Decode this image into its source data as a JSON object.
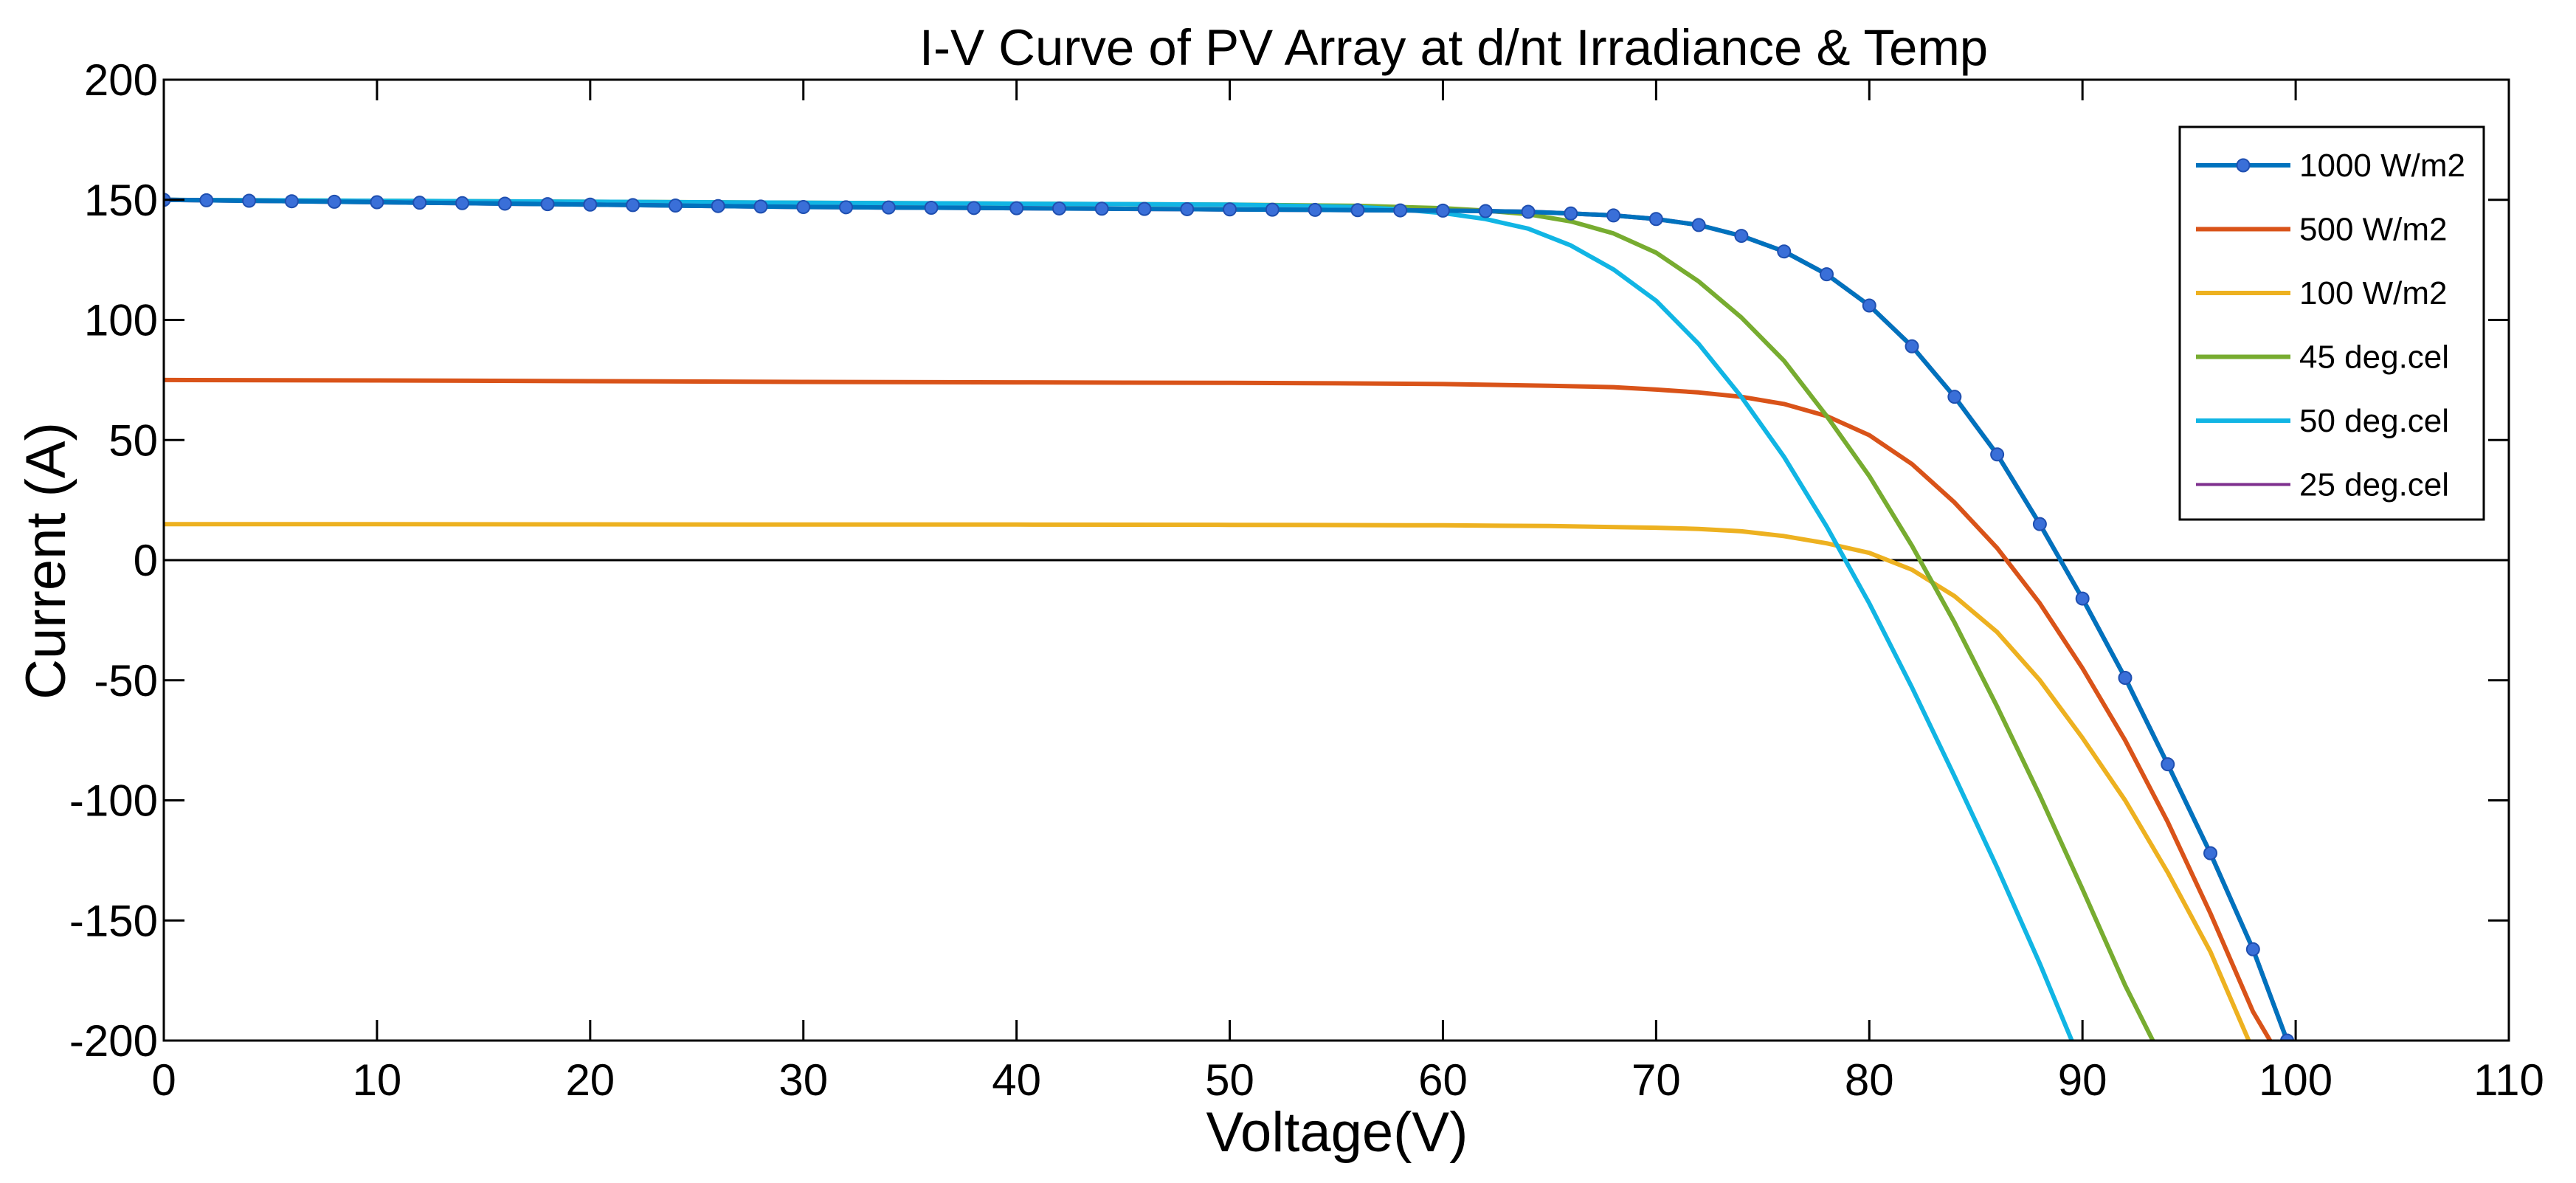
{
  "chart_data": {
    "type": "line",
    "title": "I-V Curve of PV Array at d/nt Irradiance & Temp",
    "xlabel": "Voltage(V)",
    "ylabel": "Current (A)",
    "xlim": [
      0,
      110
    ],
    "ylim": [
      -200,
      200
    ],
    "xticks": [
      0,
      10,
      20,
      30,
      40,
      50,
      60,
      70,
      80,
      90,
      100,
      110
    ],
    "yticks": [
      -200,
      -150,
      -100,
      -50,
      0,
      50,
      100,
      150,
      200
    ],
    "zero_line": true,
    "grid": false,
    "legend_position": "top-right",
    "series": [
      {
        "name": "1000 W/m2",
        "color": "#0072BD",
        "marker": "circle",
        "points": [
          [
            0,
            150
          ],
          [
            2,
            149.8
          ],
          [
            4,
            149.6
          ],
          [
            6,
            149.4
          ],
          [
            8,
            149.2
          ],
          [
            10,
            149
          ],
          [
            12,
            148.8
          ],
          [
            14,
            148.6
          ],
          [
            16,
            148.4
          ],
          [
            18,
            148.2
          ],
          [
            20,
            148
          ],
          [
            22,
            147.8
          ],
          [
            24,
            147.6
          ],
          [
            26,
            147.4
          ],
          [
            28,
            147.2
          ],
          [
            30,
            147
          ],
          [
            32,
            146.9
          ],
          [
            34,
            146.8
          ],
          [
            36,
            146.7
          ],
          [
            38,
            146.6
          ],
          [
            40,
            146.5
          ],
          [
            42,
            146.4
          ],
          [
            44,
            146.3
          ],
          [
            46,
            146.2
          ],
          [
            48,
            146.1
          ],
          [
            50,
            146
          ],
          [
            52,
            145.9
          ],
          [
            54,
            145.8
          ],
          [
            56,
            145.7
          ],
          [
            58,
            145.6
          ],
          [
            60,
            145.5
          ],
          [
            62,
            145.3
          ],
          [
            64,
            145
          ],
          [
            66,
            144.3
          ],
          [
            68,
            143.5
          ],
          [
            70,
            142
          ],
          [
            72,
            139.5
          ],
          [
            74,
            135
          ],
          [
            76,
            128.5
          ],
          [
            78,
            119
          ],
          [
            80,
            106
          ],
          [
            82,
            89
          ],
          [
            84,
            68
          ],
          [
            86,
            44
          ],
          [
            88,
            15
          ],
          [
            90,
            -16
          ],
          [
            92,
            -49
          ],
          [
            94,
            -85
          ],
          [
            96,
            -122
          ],
          [
            98,
            -162
          ],
          [
            99.6,
            -200
          ]
        ]
      },
      {
        "name": "500 W/m2",
        "color": "#D95319",
        "marker": "none",
        "points": [
          [
            0,
            75
          ],
          [
            10,
            74.8
          ],
          [
            20,
            74.5
          ],
          [
            30,
            74.2
          ],
          [
            40,
            74
          ],
          [
            50,
            73.8
          ],
          [
            55,
            73.6
          ],
          [
            60,
            73.3
          ],
          [
            65,
            72.6
          ],
          [
            68,
            72
          ],
          [
            70,
            71
          ],
          [
            72,
            69.8
          ],
          [
            74,
            68
          ],
          [
            76,
            65
          ],
          [
            78,
            60
          ],
          [
            80,
            52
          ],
          [
            82,
            40
          ],
          [
            84,
            24
          ],
          [
            86,
            5
          ],
          [
            88,
            -18
          ],
          [
            90,
            -45
          ],
          [
            92,
            -75
          ],
          [
            94,
            -109
          ],
          [
            96,
            -147
          ],
          [
            98,
            -188
          ],
          [
            98.8,
            -200
          ]
        ]
      },
      {
        "name": "100 W/m2",
        "color": "#EDB120",
        "marker": "none",
        "points": [
          [
            0,
            15
          ],
          [
            10,
            15
          ],
          [
            20,
            14.9
          ],
          [
            30,
            14.8
          ],
          [
            40,
            14.8
          ],
          [
            50,
            14.7
          ],
          [
            60,
            14.5
          ],
          [
            65,
            14.2
          ],
          [
            70,
            13.5
          ],
          [
            72,
            13
          ],
          [
            74,
            12
          ],
          [
            76,
            10
          ],
          [
            78,
            7
          ],
          [
            80,
            3
          ],
          [
            82,
            -4
          ],
          [
            84,
            -15
          ],
          [
            86,
            -30
          ],
          [
            88,
            -50
          ],
          [
            90,
            -74
          ],
          [
            92,
            -100
          ],
          [
            94,
            -130
          ],
          [
            96,
            -163
          ],
          [
            97.8,
            -200
          ]
        ]
      },
      {
        "name": "45 deg.cel",
        "color": "#77AC30",
        "marker": "none",
        "points": [
          [
            0,
            150
          ],
          [
            10,
            149.6
          ],
          [
            20,
            149.2
          ],
          [
            30,
            148.8
          ],
          [
            40,
            148.4
          ],
          [
            50,
            148
          ],
          [
            56,
            147.5
          ],
          [
            60,
            146.5
          ],
          [
            62,
            145.5
          ],
          [
            64,
            144
          ],
          [
            66,
            141
          ],
          [
            68,
            136
          ],
          [
            70,
            128
          ],
          [
            72,
            116
          ],
          [
            74,
            101
          ],
          [
            76,
            83
          ],
          [
            78,
            60
          ],
          [
            80,
            35
          ],
          [
            82,
            6
          ],
          [
            84,
            -26
          ],
          [
            86,
            -61
          ],
          [
            88,
            -98
          ],
          [
            90,
            -137
          ],
          [
            92,
            -177
          ],
          [
            93.3,
            -200
          ]
        ]
      },
      {
        "name": "50 deg.cel",
        "color": "#11B5E4",
        "marker": "none",
        "points": [
          [
            0,
            150
          ],
          [
            10,
            149.6
          ],
          [
            20,
            149.2
          ],
          [
            30,
            148.8
          ],
          [
            40,
            148.4
          ],
          [
            50,
            148
          ],
          [
            56,
            147
          ],
          [
            58,
            146
          ],
          [
            60,
            144.5
          ],
          [
            62,
            142
          ],
          [
            64,
            138
          ],
          [
            66,
            131
          ],
          [
            68,
            121
          ],
          [
            70,
            108
          ],
          [
            72,
            90
          ],
          [
            74,
            68
          ],
          [
            76,
            43
          ],
          [
            78,
            14
          ],
          [
            80,
            -18
          ],
          [
            82,
            -53
          ],
          [
            84,
            -90
          ],
          [
            86,
            -128
          ],
          [
            88,
            -168
          ],
          [
            89.5,
            -200
          ]
        ]
      },
      {
        "name": "25 deg.cel",
        "color": "#7E2F8E",
        "marker": "none",
        "points": [
          [
            0,
            150
          ],
          [
            2,
            149.8
          ],
          [
            4,
            149.6
          ],
          [
            6,
            149.4
          ],
          [
            8,
            149.2
          ],
          [
            10,
            149
          ],
          [
            12,
            148.8
          ],
          [
            14,
            148.6
          ],
          [
            16,
            148.4
          ],
          [
            18,
            148.2
          ],
          [
            20,
            148
          ],
          [
            22,
            147.8
          ],
          [
            24,
            147.6
          ],
          [
            26,
            147.4
          ],
          [
            28,
            147.2
          ],
          [
            30,
            147
          ],
          [
            32,
            146.9
          ],
          [
            34,
            146.8
          ],
          [
            36,
            146.7
          ],
          [
            38,
            146.6
          ],
          [
            40,
            146.5
          ],
          [
            42,
            146.4
          ],
          [
            44,
            146.3
          ],
          [
            46,
            146.2
          ],
          [
            48,
            146.1
          ],
          [
            50,
            146
          ],
          [
            52,
            145.9
          ],
          [
            54,
            145.8
          ],
          [
            56,
            145.7
          ],
          [
            58,
            145.6
          ],
          [
            60,
            145.5
          ],
          [
            62,
            145.3
          ],
          [
            64,
            145
          ],
          [
            66,
            144.3
          ],
          [
            68,
            143.5
          ],
          [
            70,
            142
          ],
          [
            72,
            139.5
          ],
          [
            74,
            135
          ],
          [
            76,
            128.5
          ],
          [
            78,
            119
          ],
          [
            80,
            106
          ],
          [
            82,
            89
          ],
          [
            84,
            68
          ],
          [
            86,
            44
          ],
          [
            88,
            15
          ],
          [
            90,
            -16
          ],
          [
            92,
            -49
          ],
          [
            94,
            -85
          ],
          [
            96,
            -122
          ],
          [
            98,
            -162
          ],
          [
            99.6,
            -200
          ]
        ]
      }
    ]
  }
}
